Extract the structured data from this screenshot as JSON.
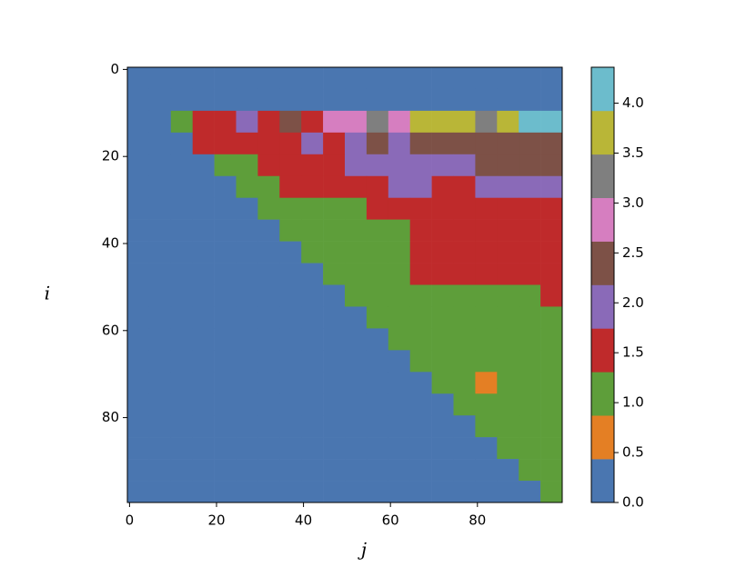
{
  "chart_data": {
    "type": "heatmap",
    "xlabel": "j",
    "ylabel": "i",
    "xbins": [
      -0.5,
      4.5,
      9.5,
      14.5,
      19.5,
      24.5,
      29.5,
      34.5,
      39.5,
      44.5,
      49.5,
      54.5,
      59.5,
      64.5,
      69.5,
      74.5,
      79.5,
      84.5,
      89.5,
      94.5,
      99.5
    ],
    "ybins": [
      -0.5,
      4.5,
      9.5,
      14.5,
      19.5,
      24.5,
      29.5,
      34.5,
      39.5,
      44.5,
      49.5,
      54.5,
      59.5,
      64.5,
      69.5,
      74.5,
      79.5,
      84.5,
      89.5,
      94.5,
      99.5
    ],
    "xlim": [
      -0.5,
      99.5
    ],
    "ylim": [
      99.5,
      -0.5
    ],
    "xticks": [
      0,
      20,
      40,
      60,
      80
    ],
    "yticks": [
      0,
      20,
      40,
      60,
      80
    ],
    "z": [
      [
        0,
        0,
        0,
        0,
        0,
        0,
        0,
        0,
        0,
        0,
        0,
        0,
        0,
        0,
        0,
        0,
        0,
        0,
        0,
        0
      ],
      [
        0,
        0,
        0,
        0,
        0,
        0,
        0,
        0,
        0,
        0,
        0,
        0,
        0,
        0,
        0,
        0,
        0,
        0,
        0,
        0
      ],
      [
        0,
        0,
        1.1,
        1.5,
        1.5,
        2,
        1.5,
        2.4,
        1.5,
        2.8,
        2.8,
        3.3,
        2.8,
        3.7,
        3.7,
        3.7,
        3.3,
        3.7,
        4.1,
        4.1
      ],
      [
        0,
        0,
        0,
        1.5,
        1.5,
        1.5,
        1.5,
        1.5,
        2,
        1.5,
        2,
        2.4,
        2,
        2.4,
        2.4,
        2.4,
        2.4,
        2.4,
        2.4,
        2.4
      ],
      [
        0,
        0,
        0,
        0,
        1.1,
        1.1,
        1.5,
        1.5,
        1.5,
        1.5,
        2,
        2,
        2,
        2,
        2,
        2,
        2.4,
        2.4,
        2.4,
        2.4
      ],
      [
        0,
        0,
        0,
        0,
        0,
        1.1,
        1.1,
        1.5,
        1.5,
        1.5,
        1.5,
        1.5,
        2,
        2,
        1.5,
        1.5,
        2,
        2,
        2,
        2
      ],
      [
        0,
        0,
        0,
        0,
        0,
        0,
        1.1,
        1.1,
        1.1,
        1.1,
        1.1,
        1.5,
        1.5,
        1.5,
        1.5,
        1.5,
        1.5,
        1.5,
        1.5,
        1.5
      ],
      [
        0,
        0,
        0,
        0,
        0,
        0,
        0,
        1.1,
        1.1,
        1.1,
        1.1,
        1.1,
        1.1,
        1.5,
        1.5,
        1.5,
        1.5,
        1.5,
        1.5,
        1.5
      ],
      [
        0,
        0,
        0,
        0,
        0,
        0,
        0,
        0,
        1.1,
        1.1,
        1.1,
        1.1,
        1.1,
        1.5,
        1.5,
        1.5,
        1.5,
        1.5,
        1.5,
        1.5
      ],
      [
        0,
        0,
        0,
        0,
        0,
        0,
        0,
        0,
        0,
        1.1,
        1.1,
        1.1,
        1.1,
        1.5,
        1.5,
        1.5,
        1.5,
        1.5,
        1.5,
        1.5
      ],
      [
        0,
        0,
        0,
        0,
        0,
        0,
        0,
        0,
        0,
        0,
        1.1,
        1.1,
        1.1,
        1.1,
        1.1,
        1.1,
        1.1,
        1.1,
        1.1,
        1.5
      ],
      [
        0,
        0,
        0,
        0,
        0,
        0,
        0,
        0,
        0,
        0,
        0,
        1.1,
        1.1,
        1.1,
        1.1,
        1.1,
        1.1,
        1.1,
        1.1,
        1.1
      ],
      [
        0,
        0,
        0,
        0,
        0,
        0,
        0,
        0,
        0,
        0,
        0,
        0,
        1.1,
        1.1,
        1.1,
        1.1,
        1.1,
        1.1,
        1.1,
        1.1
      ],
      [
        0,
        0,
        0,
        0,
        0,
        0,
        0,
        0,
        0,
        0,
        0,
        0,
        0,
        1.1,
        1.1,
        1.1,
        1.1,
        1.1,
        1.1,
        1.1
      ],
      [
        0,
        0,
        0,
        0,
        0,
        0,
        0,
        0,
        0,
        0,
        0,
        0,
        0,
        0,
        1.1,
        1.1,
        0.65,
        1.1,
        1.1,
        1.1
      ],
      [
        0,
        0,
        0,
        0,
        0,
        0,
        0,
        0,
        0,
        0,
        0,
        0,
        0,
        0,
        0,
        1.1,
        1.1,
        1.1,
        1.1,
        1.1
      ],
      [
        0,
        0,
        0,
        0,
        0,
        0,
        0,
        0,
        0,
        0,
        0,
        0,
        0,
        0,
        0,
        0,
        1.1,
        1.1,
        1.1,
        1.1
      ],
      [
        0,
        0,
        0,
        0,
        0,
        0,
        0,
        0,
        0,
        0,
        0,
        0,
        0,
        0,
        0,
        0,
        0,
        1.1,
        1.1,
        1.1
      ],
      [
        0,
        0,
        0,
        0,
        0,
        0,
        0,
        0,
        0,
        0,
        0,
        0,
        0,
        0,
        0,
        0,
        0,
        0,
        1.1,
        1.1
      ],
      [
        0,
        0,
        0,
        0,
        0,
        0,
        0,
        0,
        0,
        0,
        0,
        0,
        0,
        0,
        0,
        0,
        0,
        0,
        0,
        1.1
      ]
    ],
    "colorbar": {
      "bounds": [
        0,
        0.436,
        0.872,
        1.308,
        1.744,
        2.18,
        2.616,
        3.052,
        3.488,
        3.924,
        4.36
      ],
      "colors": [
        "#4a76b0",
        "#e47f24",
        "#5e9e3a",
        "#bf2a2b",
        "#8a6ab8",
        "#7d5147",
        "#d67ec0",
        "#7f7f7f",
        "#b9b637",
        "#6cbccc"
      ],
      "lim": [
        0,
        4.36
      ],
      "ticks": [
        {
          "value": 0,
          "label": "0.0"
        },
        {
          "value": 0.5,
          "label": "0.5"
        },
        {
          "value": 1,
          "label": "1.0"
        },
        {
          "value": 1.5,
          "label": "1.5"
        },
        {
          "value": 2,
          "label": "2.0"
        },
        {
          "value": 2.5,
          "label": "2.5"
        },
        {
          "value": 3,
          "label": "3.0"
        },
        {
          "value": 3.5,
          "label": "3.5"
        },
        {
          "value": 4,
          "label": "4.0"
        }
      ]
    }
  }
}
